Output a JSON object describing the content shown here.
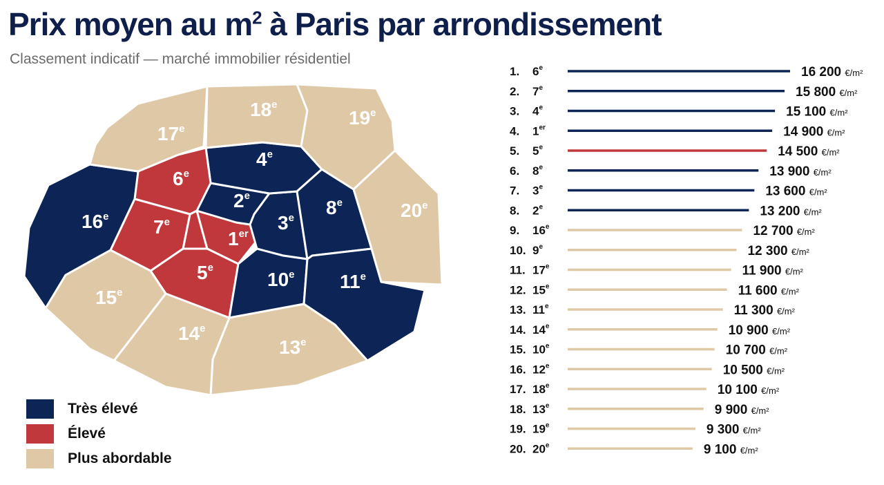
{
  "header": {
    "title_prefix": "Prix moyen au m",
    "title_sup": "2",
    "title_suffix": " à Paris par arrondissement",
    "subtitle": "Classement indicatif — marché immobilier résidentiel"
  },
  "colors": {
    "tres_eleve": "#0c2556",
    "eleve": "#c0383b",
    "plus_abordable": "#dfc8a6",
    "title": "#0f1f4b"
  },
  "legend": [
    {
      "label": "Très élevé",
      "color": "#0c2556"
    },
    {
      "label": "Élevé",
      "color": "#c0383b"
    },
    {
      "label": "Plus abordable",
      "color": "#dfc8a6"
    }
  ],
  "chart_data": [
    {
      "type": "map",
      "districts": [
        {
          "num": "1",
          "suffix": "er",
          "category": "Élevé"
        },
        {
          "num": "2",
          "suffix": "e",
          "category": "Très élevé"
        },
        {
          "num": "3",
          "suffix": "e",
          "category": "Très élevé"
        },
        {
          "num": "4",
          "suffix": "e",
          "category": "Très élevé"
        },
        {
          "num": "5",
          "suffix": "e",
          "category": "Élevé"
        },
        {
          "num": "6",
          "suffix": "e",
          "category": "Élevé"
        },
        {
          "num": "7",
          "suffix": "e",
          "category": "Élevé"
        },
        {
          "num": "8",
          "suffix": "e",
          "category": "Très élevé"
        },
        {
          "num": "10",
          "suffix": "e",
          "category": "Très élevé"
        },
        {
          "num": "11",
          "suffix": "e",
          "category": "Très élevé"
        },
        {
          "num": "13",
          "suffix": "e",
          "category": "Plus abordable"
        },
        {
          "num": "14",
          "suffix": "e",
          "category": "Plus abordable"
        },
        {
          "num": "15",
          "suffix": "e",
          "category": "Plus abordable"
        },
        {
          "num": "16",
          "suffix": "e",
          "category": "Très élevé"
        },
        {
          "num": "17",
          "suffix": "e",
          "category": "Plus abordable"
        },
        {
          "num": "18",
          "suffix": "e",
          "category": "Plus abordable"
        },
        {
          "num": "19",
          "suffix": "e",
          "category": "Plus abordable"
        },
        {
          "num": "20",
          "suffix": "e",
          "category": "Plus abordable"
        }
      ]
    },
    {
      "type": "bar",
      "orientation": "horizontal",
      "unit": "€/m²",
      "xlim": [
        0,
        16200
      ],
      "rows": [
        {
          "rank": "1.",
          "district": "6",
          "suffix": "e",
          "value": 16200,
          "label": "16 200",
          "color": "#0c2556"
        },
        {
          "rank": "2.",
          "district": "7",
          "suffix": "e",
          "value": 15800,
          "label": "15 800",
          "color": "#0c2556"
        },
        {
          "rank": "3.",
          "district": "4",
          "suffix": "e",
          "value": 15100,
          "label": "15 100",
          "color": "#0c2556"
        },
        {
          "rank": "4.",
          "district": "1",
          "suffix": "er",
          "value": 14900,
          "label": "14 900",
          "color": "#0c2556"
        },
        {
          "rank": "5.",
          "district": "5",
          "suffix": "e",
          "value": 14500,
          "label": "14 500",
          "color": "#c0383b"
        },
        {
          "rank": "6.",
          "district": "8",
          "suffix": "e",
          "value": 13900,
          "label": "13 900",
          "color": "#0c2556"
        },
        {
          "rank": "7.",
          "district": "3",
          "suffix": "e",
          "value": 13600,
          "label": "13 600",
          "color": "#0c2556"
        },
        {
          "rank": "8.",
          "district": "2",
          "suffix": "e",
          "value": 13200,
          "label": "13 200",
          "color": "#0c2556"
        },
        {
          "rank": "9.",
          "district": "16",
          "suffix": "e",
          "value": 12700,
          "label": "12 700",
          "color": "#dfc8a6"
        },
        {
          "rank": "10.",
          "district": "9",
          "suffix": "e",
          "value": 12300,
          "label": "12 300",
          "color": "#dfc8a6"
        },
        {
          "rank": "11.",
          "district": "17",
          "suffix": "e",
          "value": 11900,
          "label": "11 900",
          "color": "#dfc8a6"
        },
        {
          "rank": "12.",
          "district": "15",
          "suffix": "e",
          "value": 11600,
          "label": "11 600",
          "color": "#dfc8a6"
        },
        {
          "rank": "13.",
          "district": "11",
          "suffix": "e",
          "value": 11300,
          "label": "11 300",
          "color": "#dfc8a6"
        },
        {
          "rank": "14.",
          "district": "14",
          "suffix": "e",
          "value": 10900,
          "label": "10 900",
          "color": "#dfc8a6"
        },
        {
          "rank": "15.",
          "district": "10",
          "suffix": "e",
          "value": 10700,
          "label": "10 700",
          "color": "#dfc8a6"
        },
        {
          "rank": "16.",
          "district": "12",
          "suffix": "e",
          "value": 10500,
          "label": "10 500",
          "color": "#dfc8a6"
        },
        {
          "rank": "17.",
          "district": "18",
          "suffix": "e",
          "value": 10100,
          "label": "10 100",
          "color": "#dfc8a6"
        },
        {
          "rank": "18.",
          "district": "13",
          "suffix": "e",
          "value": 9900,
          "label": "9 900",
          "color": "#dfc8a6"
        },
        {
          "rank": "19.",
          "district": "19",
          "suffix": "e",
          "value": 9300,
          "label": "9 300",
          "color": "#dfc8a6"
        },
        {
          "rank": "20.",
          "district": "20",
          "suffix": "e",
          "value": 9100,
          "label": "9 100",
          "color": "#dfc8a6"
        }
      ]
    }
  ]
}
